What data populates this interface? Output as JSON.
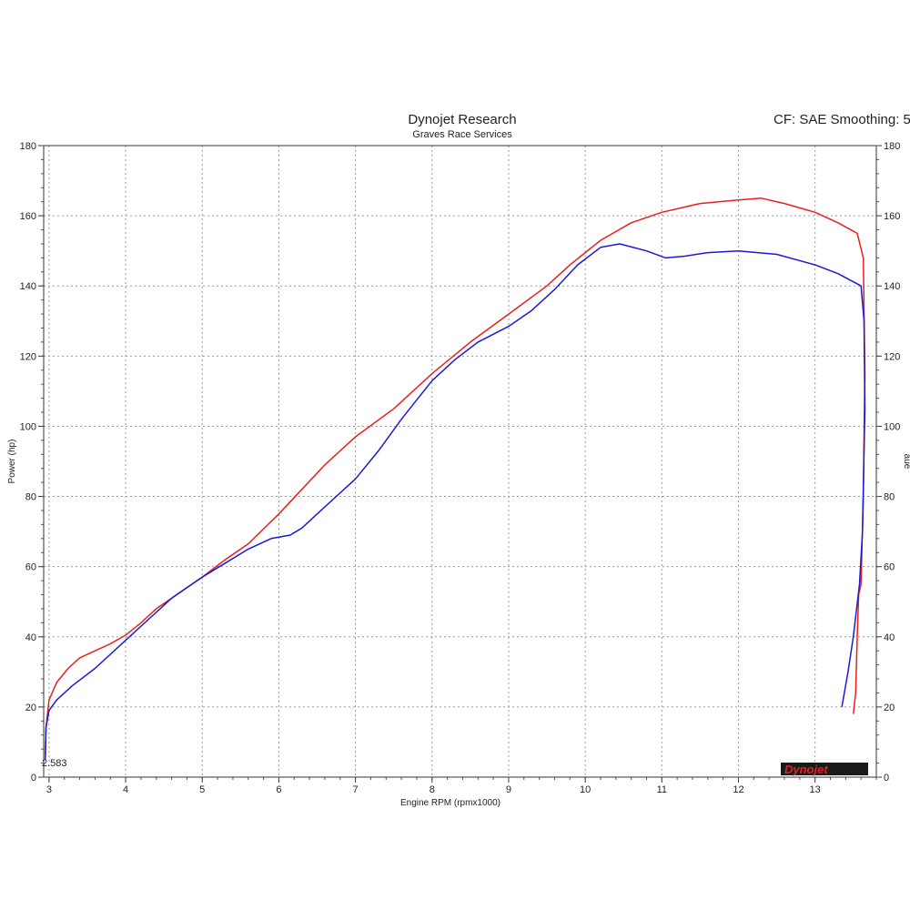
{
  "header": {
    "title": "Dynojet Research",
    "subtitle": "Graves Race Services",
    "correction": "CF: SAE Smoothing: 5"
  },
  "readout": "2.583",
  "logo_text": "Dynojet",
  "chart_data": {
    "type": "line",
    "title": "Dynojet Research",
    "subtitle": "Graves Race Services",
    "xlabel": "Engine RPM (rpmx1000)",
    "ylabel": "Power (hp)",
    "ylabel_right": "aue",
    "xlim": [
      2.93,
      13.8
    ],
    "ylim": [
      0,
      180
    ],
    "x_ticks": [
      3,
      4,
      5,
      6,
      7,
      8,
      9,
      10,
      11,
      12,
      13
    ],
    "y_ticks": [
      0,
      20,
      40,
      60,
      80,
      100,
      120,
      140,
      160,
      180
    ],
    "grid": true,
    "series": [
      {
        "color": "#e8201c",
        "points": [
          [
            2.95,
            5
          ],
          [
            2.96,
            14
          ],
          [
            3.0,
            22
          ],
          [
            3.1,
            27
          ],
          [
            3.25,
            31
          ],
          [
            3.4,
            34
          ],
          [
            3.6,
            36
          ],
          [
            3.8,
            38
          ],
          [
            4.0,
            40.5
          ],
          [
            4.2,
            44
          ],
          [
            4.4,
            48
          ],
          [
            4.6,
            51
          ],
          [
            4.8,
            54
          ],
          [
            5.0,
            57
          ],
          [
            5.3,
            62
          ],
          [
            5.6,
            66.5
          ],
          [
            6.0,
            75
          ],
          [
            6.3,
            82
          ],
          [
            6.6,
            89
          ],
          [
            7.0,
            97
          ],
          [
            7.5,
            105
          ],
          [
            8.0,
            115
          ],
          [
            8.5,
            124
          ],
          [
            9.0,
            132
          ],
          [
            9.5,
            140
          ],
          [
            9.8,
            146
          ],
          [
            10.2,
            153
          ],
          [
            10.6,
            158
          ],
          [
            11.0,
            161
          ],
          [
            11.5,
            163.5
          ],
          [
            12.0,
            164.5
          ],
          [
            12.3,
            165
          ],
          [
            12.6,
            163.5
          ],
          [
            13.0,
            161
          ],
          [
            13.3,
            158
          ],
          [
            13.55,
            155
          ],
          [
            13.63,
            148
          ],
          [
            13.65,
            115
          ],
          [
            13.63,
            80
          ],
          [
            13.6,
            55
          ],
          [
            13.57,
            52
          ],
          [
            13.55,
            40
          ],
          [
            13.53,
            24
          ],
          [
            13.5,
            18
          ]
        ]
      },
      {
        "color": "#1a1ad6",
        "points": [
          [
            2.95,
            5
          ],
          [
            2.96,
            14
          ],
          [
            3.0,
            19
          ],
          [
            3.1,
            22
          ],
          [
            3.3,
            26
          ],
          [
            3.6,
            31
          ],
          [
            4.0,
            39
          ],
          [
            4.3,
            45
          ],
          [
            4.6,
            51
          ],
          [
            5.0,
            57
          ],
          [
            5.3,
            61
          ],
          [
            5.6,
            65
          ],
          [
            5.9,
            68
          ],
          [
            6.15,
            69
          ],
          [
            6.3,
            71
          ],
          [
            6.6,
            77
          ],
          [
            7.0,
            85
          ],
          [
            7.3,
            93
          ],
          [
            7.6,
            102
          ],
          [
            8.0,
            113
          ],
          [
            8.3,
            119
          ],
          [
            8.6,
            124
          ],
          [
            9.0,
            128.5
          ],
          [
            9.3,
            133
          ],
          [
            9.6,
            139
          ],
          [
            9.9,
            146
          ],
          [
            10.2,
            151
          ],
          [
            10.45,
            152
          ],
          [
            10.8,
            150
          ],
          [
            11.05,
            148
          ],
          [
            11.3,
            148.5
          ],
          [
            11.6,
            149.5
          ],
          [
            12.0,
            150
          ],
          [
            12.5,
            149
          ],
          [
            13.0,
            146
          ],
          [
            13.3,
            143.5
          ],
          [
            13.6,
            140
          ],
          [
            13.64,
            130
          ],
          [
            13.65,
            105
          ],
          [
            13.62,
            70
          ],
          [
            13.58,
            55
          ],
          [
            13.5,
            40
          ],
          [
            13.43,
            30
          ],
          [
            13.35,
            20
          ]
        ]
      }
    ]
  }
}
